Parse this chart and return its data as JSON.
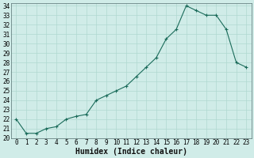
{
  "x": [
    0,
    1,
    2,
    3,
    4,
    5,
    6,
    7,
    8,
    9,
    10,
    11,
    12,
    13,
    14,
    15,
    16,
    17,
    18,
    19,
    20,
    21,
    22,
    23
  ],
  "y": [
    22.0,
    20.5,
    20.5,
    21.0,
    21.2,
    22.0,
    22.3,
    22.5,
    24.0,
    24.5,
    25.0,
    25.5,
    26.5,
    27.5,
    28.5,
    30.5,
    31.5,
    34.0,
    33.5,
    33.0,
    33.0,
    31.5,
    28.0,
    27.5
  ],
  "xlabel": "Humidex (Indice chaleur)",
  "ylim": [
    20,
    34
  ],
  "xlim": [
    -0.5,
    23.5
  ],
  "bg_color": "#d0ece8",
  "line_color": "#1a6b5a",
  "grid_major_color": "#b0d8d0",
  "grid_minor_color": "#c0e0d8",
  "yticks": [
    20,
    21,
    22,
    23,
    24,
    25,
    26,
    27,
    28,
    29,
    30,
    31,
    32,
    33,
    34
  ],
  "xticks": [
    0,
    1,
    2,
    3,
    4,
    5,
    6,
    7,
    8,
    9,
    10,
    11,
    12,
    13,
    14,
    15,
    16,
    17,
    18,
    19,
    20,
    21,
    22,
    23
  ],
  "tick_fontsize": 5.5,
  "xlabel_fontsize": 7.0
}
